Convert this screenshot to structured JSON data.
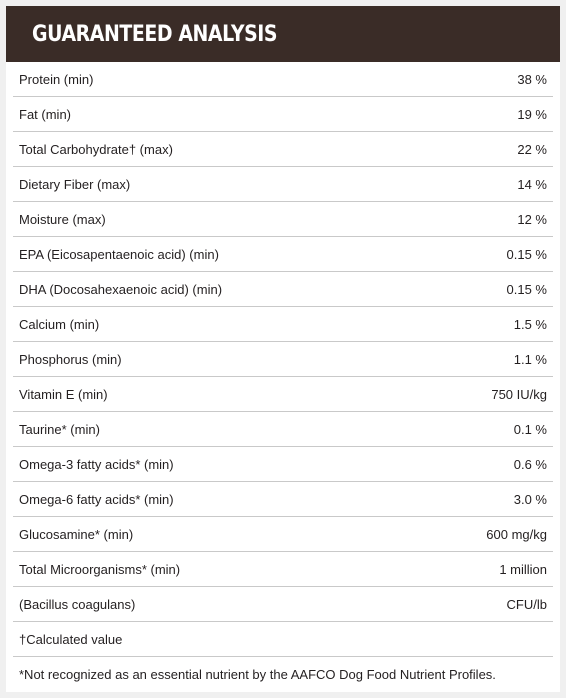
{
  "header": {
    "title": "GUARANTEED ANALYSIS"
  },
  "rows": [
    {
      "name": "Protein (min)",
      "value": "38 %"
    },
    {
      "name": "Fat (min)",
      "value": "19 %"
    },
    {
      "name": "Total Carbohydrate† (max)",
      "value": "22 %"
    },
    {
      "name": "Dietary Fiber (max)",
      "value": "14 %"
    },
    {
      "name": "Moisture (max)",
      "value": "12 %"
    },
    {
      "name": "EPA (Eicosapentaenoic acid) (min)",
      "value": "0.15 %"
    },
    {
      "name": "DHA (Docosahexaenoic acid) (min)",
      "value": "0.15 %"
    },
    {
      "name": "Calcium (min)",
      "value": "1.5 %"
    },
    {
      "name": "Phosphorus (min)",
      "value": "1.1 %"
    },
    {
      "name": "Vitamin E (min)",
      "value": "750 IU/kg"
    },
    {
      "name": "Taurine* (min)",
      "value": "0.1 %"
    },
    {
      "name": "Omega-3 fatty acids* (min)",
      "value": "0.6 %"
    },
    {
      "name": "Omega-6 fatty acids* (min)",
      "value": "3.0 %"
    },
    {
      "name": "Glucosamine* (min)",
      "value": "600 mg/kg"
    },
    {
      "name": "Total Microorganisms* (min)",
      "value": "1 million"
    },
    {
      "name": "(Bacillus coagulans)",
      "value": "CFU/lb"
    }
  ],
  "footnotes": {
    "calculated": "†Calculated value",
    "not_recognized": "*Not recognized as an essential nutrient by the AAFCO Dog Food Nutrient Profiles."
  },
  "colors": {
    "header_bg": "#3a2c27",
    "header_text": "#ffffff",
    "row_divider": "#c9c9c9",
    "outer_bg": "#f0f0f0"
  }
}
